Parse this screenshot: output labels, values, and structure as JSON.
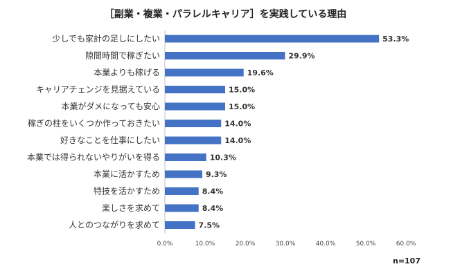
{
  "chart_data": {
    "type": "bar",
    "orientation": "horizontal",
    "title": "［副業・複業・パラレルキャリア］を実践している理由",
    "categories": [
      "少しでも家計の足しにしたい",
      "隙間時間で稼ぎたい",
      "本業よりも稼げる",
      "キャリアチェンジを見据えている",
      "本業がダメになっても安心",
      "稼ぎの柱をいくつか作っておきたい",
      "好きなことを仕事にしたい",
      "本業では得られないやりがいを得る",
      "本業に活かすため",
      "特技を活かすため",
      "楽しさを求めて",
      "人とのつながりを求めて"
    ],
    "values": [
      53.3,
      29.9,
      19.6,
      15.0,
      15.0,
      14.0,
      14.0,
      10.3,
      9.3,
      8.4,
      8.4,
      7.5
    ],
    "value_labels": [
      "53.3%",
      "29.9%",
      "19.6%",
      "15.0%",
      "15.0%",
      "14.0%",
      "14.0%",
      "10.3%",
      "9.3%",
      "8.4%",
      "8.4%",
      "7.5%"
    ],
    "xlim": [
      0,
      60
    ],
    "xticks": [
      0,
      10,
      20,
      30,
      40,
      50,
      60
    ],
    "xtick_labels": [
      "0.0%",
      "10.0%",
      "20.0%",
      "30.0%",
      "40.0%",
      "50.0%",
      "60.0%"
    ],
    "xlabel": "",
    "ylabel": "",
    "grid": false,
    "legend": "none",
    "bar_color": "#4472C4",
    "note": "n=107"
  }
}
